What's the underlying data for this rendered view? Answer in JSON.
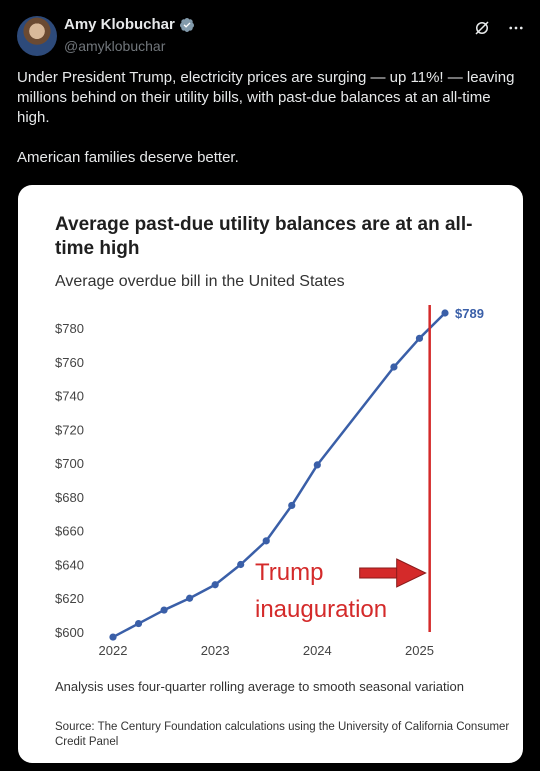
{
  "tweet": {
    "author_name": "Amy Klobuchar",
    "author_handle": "@amyklobuchar",
    "text": "Under President Trump, electricity prices are surging — up 11%! — leaving millions behind on their utility bills, with past-due balances at an all-time high.\n\nAmerican families deserve better.",
    "icons": {
      "avatar": "avatar-image",
      "verified": "verified-badge-icon",
      "grok": "grok-icon",
      "more": "more-options-icon"
    }
  },
  "card": {
    "title": "Average past-due utility balances are at an all-time high",
    "subtitle": "Average overdue bill in the United States",
    "footnote": "Analysis uses four-quarter rolling average to smooth seasonal variation",
    "source": "Source: The Century Foundation calculations using the University of California Consumer Credit Panel"
  },
  "chart_data": {
    "type": "line",
    "title": "Average past-due utility balances are at an all-time high",
    "subtitle": "Average overdue bill in the United States",
    "ylim": [
      600,
      789
    ],
    "yticks": [
      600,
      620,
      640,
      660,
      680,
      700,
      720,
      740,
      760,
      780
    ],
    "ytick_labels": [
      "$600",
      "$620",
      "$640",
      "$660",
      "$680",
      "$700",
      "$720",
      "$740",
      "$760",
      "$780"
    ],
    "xlim": [
      2022,
      2025.25
    ],
    "xticks": [
      2022,
      2023,
      2024,
      2025
    ],
    "xtick_labels": [
      "2022",
      "2023",
      "2024",
      "2025"
    ],
    "series_color": "#3a5fa8",
    "series": [
      {
        "x": [
          2022.0,
          2022.25,
          2022.5,
          2022.75,
          2023.0,
          2023.25,
          2023.5,
          2023.75,
          2024.0,
          2024.75,
          2025.0,
          2025.25
        ],
        "values": [
          597,
          605,
          613,
          620,
          628,
          640,
          654,
          675,
          699,
          757,
          774,
          789
        ]
      }
    ],
    "end_label": "$789",
    "annotation": {
      "text_line1": "Trump",
      "text_line2": "inauguration",
      "x": 2025.1,
      "color": "#d42a2a"
    },
    "grid": false
  }
}
